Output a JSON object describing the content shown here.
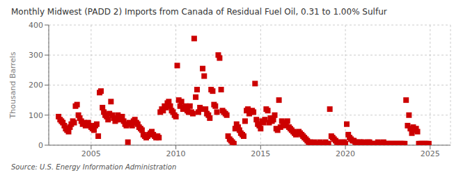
{
  "chart_data": {
    "type": "scatter",
    "title": "Monthly Midwest (PADD 2) Imports from Canada of Residual Fuel Oil, 0.31 to 1.00% Sulfur",
    "y_label": "Thousand Barrels",
    "annotations": [
      "Source: U.S. Energy Information Administration"
    ],
    "color": "#cc0000",
    "marker": "square",
    "grid": true,
    "xlim": [
      2002.5,
      2026.2
    ],
    "xticks": [
      2005,
      2010,
      2015,
      2020,
      2025
    ],
    "ylim": [
      0,
      400
    ],
    "yticks": [
      0,
      100,
      200,
      300,
      400
    ],
    "x": [
      2003.08,
      2003.17,
      2003.25,
      2003.33,
      2003.42,
      2003.5,
      2003.58,
      2003.67,
      2003.75,
      2003.83,
      2003.92,
      2004.0,
      2004.08,
      2004.17,
      2004.25,
      2004.33,
      2004.42,
      2004.5,
      2004.58,
      2004.67,
      2004.75,
      2004.83,
      2004.92,
      2005.0,
      2005.08,
      2005.17,
      2005.25,
      2005.33,
      2005.42,
      2005.5,
      2005.58,
      2005.67,
      2005.75,
      2005.83,
      2005.92,
      2006.0,
      2006.08,
      2006.17,
      2006.25,
      2006.33,
      2006.42,
      2006.5,
      2006.58,
      2006.67,
      2006.75,
      2006.83,
      2006.92,
      2007.0,
      2007.08,
      2007.17,
      2007.25,
      2007.33,
      2007.42,
      2007.5,
      2007.58,
      2007.67,
      2007.75,
      2007.83,
      2007.92,
      2008.0,
      2008.08,
      2008.17,
      2008.25,
      2008.33,
      2008.42,
      2008.5,
      2008.58,
      2008.67,
      2008.75,
      2008.83,
      2008.92,
      2009.0,
      2009.08,
      2009.17,
      2009.25,
      2009.33,
      2009.42,
      2009.5,
      2009.58,
      2009.67,
      2009.75,
      2009.83,
      2009.92,
      2010.0,
      2010.08,
      2010.17,
      2010.25,
      2010.33,
      2010.42,
      2010.5,
      2010.58,
      2010.67,
      2010.75,
      2010.83,
      2010.92,
      2011.0,
      2011.08,
      2011.17,
      2011.25,
      2011.33,
      2011.42,
      2011.5,
      2011.58,
      2011.67,
      2011.75,
      2011.83,
      2011.92,
      2012.0,
      2012.08,
      2012.17,
      2012.25,
      2012.33,
      2012.42,
      2012.5,
      2012.58,
      2012.67,
      2012.75,
      2012.83,
      2012.92,
      2013.0,
      2013.08,
      2013.17,
      2013.25,
      2013.33,
      2013.42,
      2013.5,
      2013.58,
      2013.67,
      2013.75,
      2013.83,
      2013.92,
      2014.0,
      2014.08,
      2014.17,
      2014.25,
      2014.33,
      2014.42,
      2014.5,
      2014.58,
      2014.67,
      2014.75,
      2014.83,
      2014.92,
      2015.0,
      2015.08,
      2015.17,
      2015.25,
      2015.33,
      2015.42,
      2015.5,
      2015.58,
      2015.67,
      2015.75,
      2015.83,
      2015.92,
      2016.0,
      2016.08,
      2016.17,
      2016.25,
      2016.33,
      2016.42,
      2016.5,
      2016.58,
      2016.67,
      2016.75,
      2016.83,
      2016.92,
      2017.0,
      2017.08,
      2017.17,
      2017.25,
      2017.33,
      2017.42,
      2017.5,
      2017.58,
      2017.67,
      2017.75,
      2017.83,
      2017.92,
      2018.0,
      2018.08,
      2018.17,
      2018.25,
      2018.33,
      2018.42,
      2018.5,
      2018.58,
      2018.67,
      2018.75,
      2018.83,
      2018.92,
      2019.0,
      2019.08,
      2019.17,
      2019.25,
      2019.33,
      2019.42,
      2019.5,
      2019.58,
      2019.67,
      2019.75,
      2019.83,
      2019.92,
      2020.0,
      2020.08,
      2020.17,
      2020.25,
      2020.33,
      2020.42,
      2020.5,
      2020.58,
      2020.67,
      2020.75,
      2020.83,
      2020.92,
      2021.0,
      2021.08,
      2021.17,
      2021.25,
      2021.33,
      2021.42,
      2021.5,
      2021.58,
      2021.67,
      2021.75,
      2021.83,
      2021.92,
      2022.0,
      2022.08,
      2022.17,
      2022.25,
      2022.33,
      2022.42,
      2022.5,
      2022.58,
      2022.67,
      2022.75,
      2022.83,
      2022.92,
      2023.0,
      2023.08,
      2023.17,
      2023.25,
      2023.33,
      2023.42,
      2023.5,
      2023.58,
      2023.67,
      2023.75,
      2023.83,
      2023.92,
      2024.0,
      2024.08,
      2024.17,
      2024.25,
      2024.33,
      2024.42,
      2024.5,
      2024.58,
      2024.67,
      2024.75,
      2024.83,
      2024.92
    ],
    "values": [
      95,
      85,
      80,
      75,
      65,
      55,
      50,
      45,
      60,
      70,
      80,
      75,
      130,
      135,
      100,
      90,
      80,
      70,
      75,
      65,
      70,
      75,
      65,
      60,
      55,
      50,
      65,
      70,
      30,
      175,
      180,
      125,
      110,
      100,
      95,
      85,
      105,
      145,
      100,
      90,
      80,
      85,
      100,
      90,
      85,
      95,
      80,
      70,
      65,
      10,
      75,
      70,
      65,
      80,
      85,
      75,
      70,
      60,
      55,
      50,
      35,
      30,
      25,
      30,
      35,
      40,
      45,
      35,
      30,
      25,
      30,
      25,
      110,
      120,
      115,
      130,
      125,
      140,
      145,
      130,
      115,
      110,
      100,
      95,
      265,
      150,
      130,
      145,
      120,
      125,
      130,
      115,
      110,
      130,
      110,
      105,
      355,
      160,
      185,
      110,
      125,
      120,
      255,
      230,
      120,
      105,
      100,
      90,
      185,
      180,
      135,
      130,
      110,
      300,
      290,
      185,
      115,
      110,
      105,
      100,
      30,
      20,
      15,
      10,
      5,
      55,
      70,
      60,
      50,
      40,
      35,
      30,
      80,
      115,
      120,
      105,
      110,
      115,
      110,
      205,
      85,
      70,
      65,
      55,
      80,
      75,
      85,
      120,
      115,
      75,
      90,
      80,
      85,
      100,
      55,
      50,
      150,
      60,
      80,
      70,
      65,
      75,
      80,
      60,
      55,
      50,
      45,
      40,
      35,
      40,
      45,
      40,
      35,
      30,
      25,
      20,
      15,
      10,
      10,
      5,
      5,
      10,
      5,
      5,
      5,
      10,
      5,
      5,
      5,
      10,
      5,
      5,
      120,
      30,
      25,
      20,
      15,
      10,
      10,
      5,
      5,
      10,
      10,
      5,
      70,
      35,
      25,
      20,
      15,
      15,
      10,
      10,
      5,
      10,
      10,
      5,
      10,
      5,
      5,
      10,
      10,
      5,
      5,
      5,
      5,
      5,
      10,
      5,
      5,
      5,
      10,
      5,
      5,
      5,
      5,
      5,
      5,
      5,
      5,
      5,
      5,
      5,
      5,
      5,
      5,
      5,
      150,
      65,
      100,
      55,
      40,
      60,
      50,
      55,
      45,
      5,
      5,
      5,
      5,
      5,
      5,
      5,
      5
    ]
  }
}
